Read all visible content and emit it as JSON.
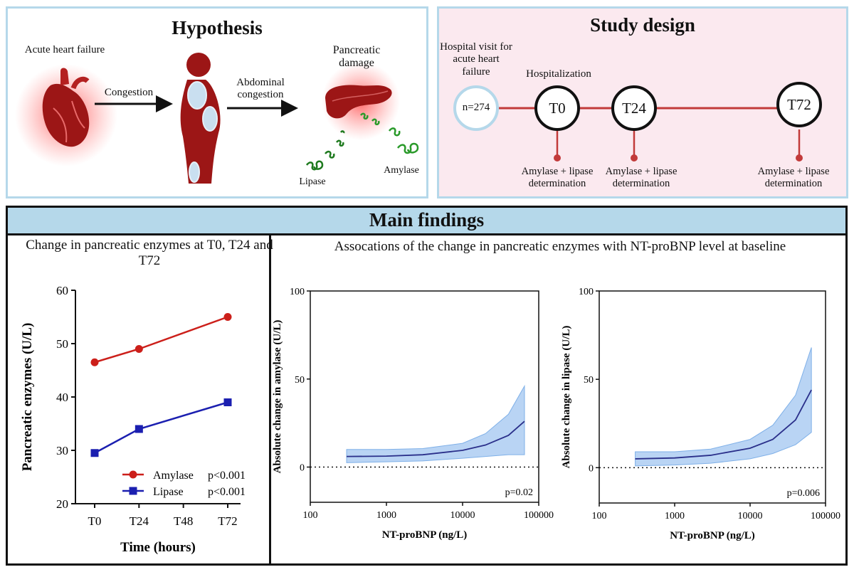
{
  "hypothesis": {
    "title": "Hypothesis",
    "heart_label": "Acute heart failure",
    "congestion_label": "Congestion",
    "abdominal_label": "Abdominal congestion",
    "pancreas_label": "Pancreatic damage",
    "lipase_label": "Lipase",
    "amylase_label": "Amylase"
  },
  "study_design": {
    "title": "Study design",
    "visit_label": "Hospital visit for acute heart failure",
    "hospitalization_label": "Hospitalization",
    "n_label": "n=274",
    "timepoints": [
      {
        "label": "T0",
        "determination": "Amylase + lipase determination"
      },
      {
        "label": "T24",
        "determination": "Amylase + lipase determination"
      },
      {
        "label": "T72",
        "determination": "Amylase + lipase determination"
      }
    ]
  },
  "main_findings": {
    "title": "Main findings",
    "left_title": "Change in pancreatic enzymes at T0, T24 and T72",
    "right_title": "Assocations of the change in pancreatic enzymes with NT-proBNP level at baseline"
  },
  "chart_data": [
    {
      "type": "line",
      "title": "Change in pancreatic enzymes at T0, T24 and T72",
      "categories": [
        "T0",
        "T24",
        "T48",
        "T72"
      ],
      "xlabel": "Time (hours)",
      "ylabel": "Pancreatic enzymes (U/L)",
      "ylim": [
        20,
        60
      ],
      "yticks": [
        20,
        30,
        40,
        50,
        60
      ],
      "series": [
        {
          "name": "Amylase",
          "color": "#cc1f1a",
          "marker": "circle",
          "points": [
            [
              0,
              46.5
            ],
            [
              1,
              49
            ],
            [
              3,
              55
            ]
          ],
          "p": "p<0.001"
        },
        {
          "name": "Lipase",
          "color": "#1b1fb0",
          "marker": "square",
          "points": [
            [
              0,
              29.5
            ],
            [
              1,
              34
            ],
            [
              3,
              39
            ]
          ],
          "p": "p<0.001"
        }
      ],
      "legend_position": "bottom-right"
    },
    {
      "type": "line",
      "xscale": "log",
      "xlim": [
        100,
        100000
      ],
      "xticks": [
        "100",
        "1000",
        "10000",
        "100000"
      ],
      "ylim": [
        -20,
        100
      ],
      "yticks": [
        0,
        50,
        100
      ],
      "xlabel": "NT-proBNP (ng/L)",
      "ylabel": "Absolute change in amylase (U/L)",
      "x": [
        300,
        1000,
        3000,
        10000,
        20000,
        40000,
        65000
      ],
      "y": [
        6,
        6.2,
        7,
        9.5,
        12.5,
        18,
        26
      ],
      "lower": [
        2.5,
        3,
        3.5,
        5,
        6,
        7,
        7
      ],
      "upper": [
        10,
        10,
        10.5,
        13.5,
        19,
        30,
        46
      ],
      "annotation": "p=0.02"
    },
    {
      "type": "line",
      "xscale": "log",
      "xlim": [
        100,
        100000
      ],
      "xticks": [
        "100",
        "1000",
        "10000",
        "100000"
      ],
      "ylim": [
        -20,
        100
      ],
      "yticks": [
        0,
        50,
        100
      ],
      "xlabel": "NT-proBNP (ng/L)",
      "ylabel": "Absolute change in lipase (U/L)",
      "x": [
        300,
        1000,
        3000,
        10000,
        20000,
        40000,
        65000
      ],
      "y": [
        5,
        5.5,
        7,
        11,
        16,
        27,
        44
      ],
      "lower": [
        1,
        1.5,
        2.5,
        5,
        8,
        13,
        20
      ],
      "upper": [
        9,
        9,
        10.5,
        16,
        24,
        41,
        68
      ],
      "annotation": "p=0.006"
    }
  ]
}
